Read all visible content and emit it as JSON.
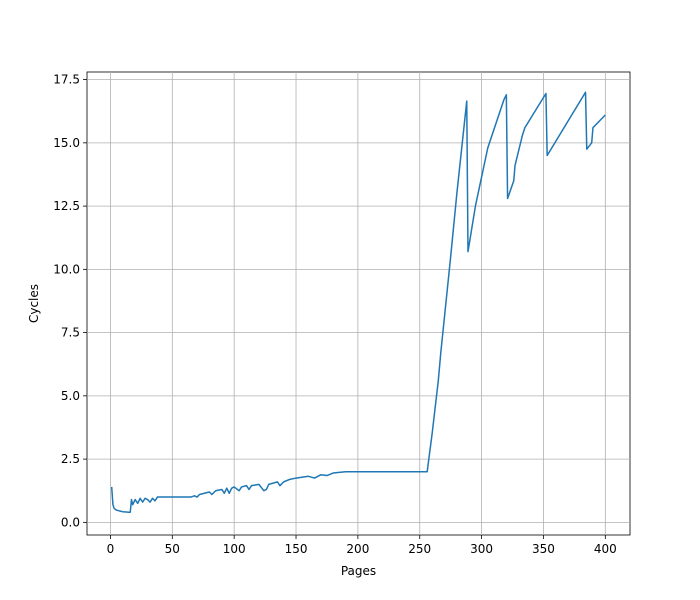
{
  "chart_data": {
    "type": "line",
    "xlabel": "Pages",
    "ylabel": "Cycles",
    "x": [
      1,
      2,
      3,
      5,
      10,
      15,
      16,
      17,
      18,
      20,
      22,
      24,
      26,
      28,
      30,
      32,
      34,
      36,
      38,
      40,
      65,
      68,
      70,
      72,
      80,
      82,
      85,
      90,
      92,
      94,
      96,
      98,
      100,
      104,
      106,
      110,
      112,
      114,
      120,
      124,
      126,
      128,
      135,
      137,
      140,
      145,
      150,
      160,
      165,
      170,
      175,
      180,
      190,
      256,
      260,
      265,
      267,
      275,
      280,
      288,
      289,
      295,
      305,
      318,
      320,
      321,
      326,
      327,
      333,
      335,
      352,
      353,
      384,
      385,
      389,
      390,
      400
    ],
    "series": [
      {
        "name": "Cycles",
        "color": "#1f77b4",
        "values": [
          1.4,
          0.7,
          0.55,
          0.48,
          0.42,
          0.4,
          0.4,
          0.9,
          0.7,
          0.9,
          0.75,
          0.95,
          0.8,
          0.95,
          0.9,
          0.8,
          0.95,
          0.85,
          1.0,
          1.0,
          1.0,
          1.05,
          1.0,
          1.1,
          1.2,
          1.1,
          1.25,
          1.3,
          1.15,
          1.35,
          1.15,
          1.35,
          1.4,
          1.25,
          1.4,
          1.45,
          1.3,
          1.45,
          1.5,
          1.25,
          1.3,
          1.5,
          1.6,
          1.45,
          1.6,
          1.7,
          1.75,
          1.82,
          1.75,
          1.88,
          1.85,
          1.95,
          2.0,
          2.0,
          3.5,
          5.6,
          6.7,
          10.5,
          13.0,
          16.65,
          10.7,
          12.5,
          14.8,
          16.7,
          16.9,
          12.8,
          13.5,
          14.1,
          15.3,
          15.6,
          16.95,
          14.5,
          17.0,
          14.75,
          15.0,
          15.6,
          16.1
        ]
      }
    ],
    "xlim": [
      -18.95,
      419.95
    ],
    "xticks": [
      0,
      50,
      100,
      150,
      200,
      250,
      300,
      350,
      400
    ],
    "ylim": [
      -0.5,
      17.8
    ],
    "yticks": [
      {
        "value": 0,
        "label": "0.0"
      },
      2.5,
      {
        "value": 5,
        "label": "5.0"
      },
      7.5,
      {
        "value": 10,
        "label": "10.0"
      },
      12.5,
      {
        "value": 15,
        "label": "15.0"
      },
      17.5
    ],
    "grid": true
  }
}
